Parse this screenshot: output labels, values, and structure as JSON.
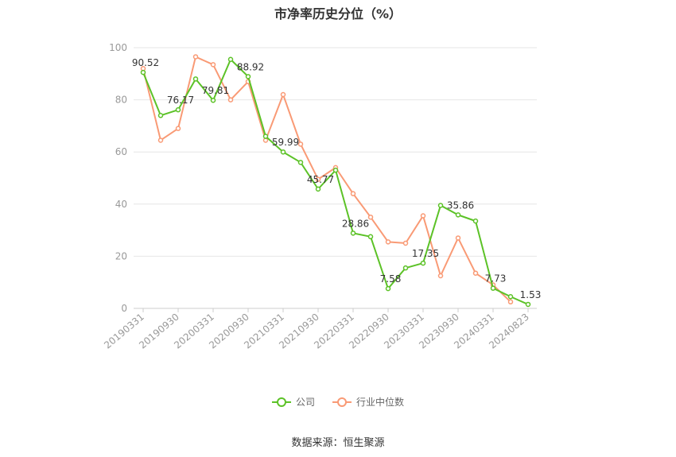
{
  "title": "市净率历史分位（%）",
  "source": "数据来源：恒生聚源",
  "colors": {
    "company": "#5cc227",
    "industry": "#f99a75"
  },
  "chart_data": {
    "type": "line",
    "title": "市净率历史分位（%）",
    "xlabel": "",
    "ylabel": "",
    "ylim": [
      0,
      100
    ],
    "yticks": [
      0,
      20,
      40,
      60,
      80,
      100
    ],
    "grid": true,
    "legend_position": "bottom",
    "x": [
      "20190331",
      "20190630",
      "20190930",
      "20191231",
      "20200331",
      "20200630",
      "20200930",
      "20201231",
      "20210331",
      "20210630",
      "20210930",
      "20211231",
      "20220331",
      "20220630",
      "20220930",
      "20221231",
      "20230331",
      "20230630",
      "20230930",
      "20231231",
      "20240331",
      "20240630",
      "20240823"
    ],
    "x_tick_labels": [
      "20190331",
      "20190930",
      "20200331",
      "20200930",
      "20210331",
      "20210930",
      "20220331",
      "20220930",
      "20230331",
      "20230930",
      "20240331",
      "20240823"
    ],
    "series": [
      {
        "name": "公司",
        "key": "company",
        "values": [
          90.52,
          74,
          76.17,
          88,
          79.81,
          95.5,
          88.92,
          66,
          59.99,
          56,
          45.77,
          53,
          28.86,
          27.5,
          7.58,
          15.5,
          17.35,
          39.5,
          35.86,
          33.5,
          7.73,
          4.5,
          1.53
        ],
        "labels": [
          "90.52",
          null,
          "76.17",
          null,
          "79.81",
          null,
          "88.92",
          null,
          "59.99",
          null,
          "45.77",
          null,
          "28.86",
          null,
          "7.58",
          null,
          "17.35",
          null,
          "35.86",
          null,
          "7.73",
          null,
          "1.53"
        ]
      },
      {
        "name": "行业中位数",
        "key": "industry",
        "values": [
          92,
          64.5,
          69,
          96.5,
          93.5,
          80,
          87,
          64.5,
          82,
          63,
          49.5,
          54,
          44,
          35,
          25.5,
          25,
          35.5,
          12.5,
          27,
          13.5,
          9,
          2.5,
          null
        ]
      }
    ]
  }
}
